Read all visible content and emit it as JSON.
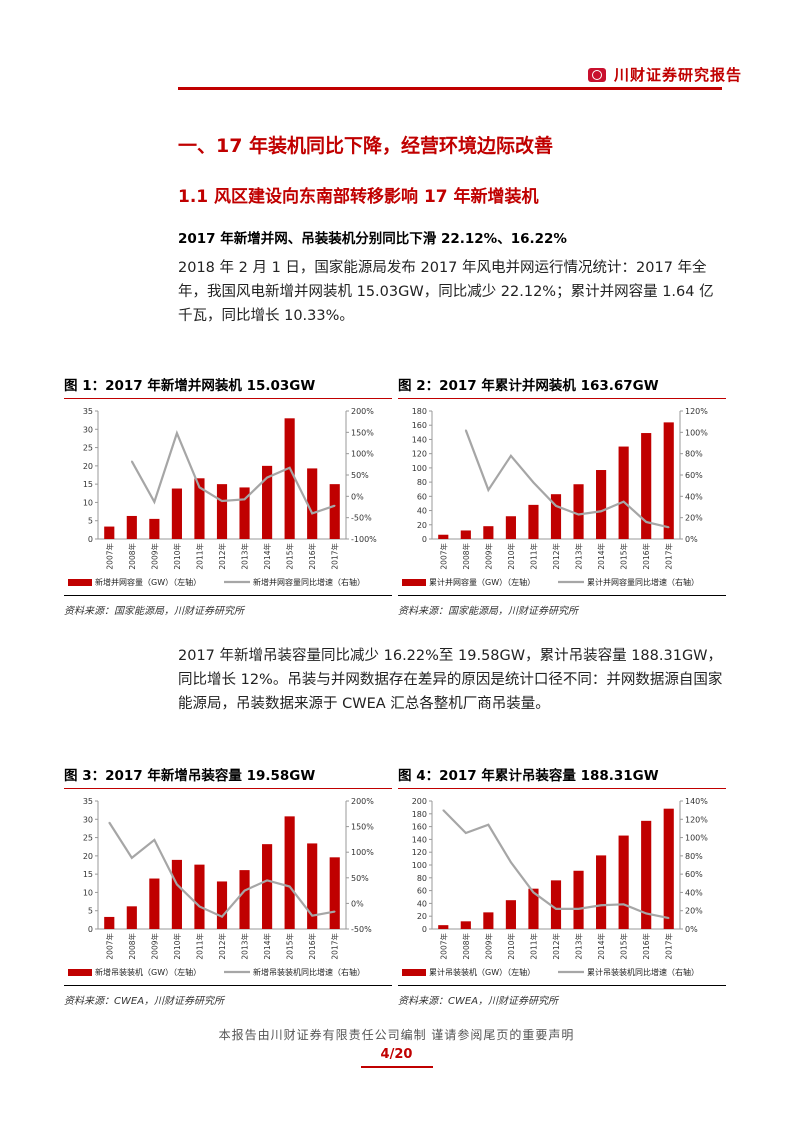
{
  "header": {
    "brand": "川财证券研究报告"
  },
  "section": {
    "h1": "一、17 年装机同比下降，经营环境边际改善",
    "h2": "1.1  风区建设向东南部转移影响 17 年新增装机",
    "h3": "2017 年新增并网、吊装装机分别同比下滑 22.12%、16.22%"
  },
  "paragraphs": [
    "2018 年 2 月 1 日，国家能源局发布 2017 年风电并网运行情况统计：2017 年全年，我国风电新增并网装机 15.03GW，同比减少 22.12%；累计并网容量 1.64 亿千瓦，同比增长 10.33%。",
    "2017 年新增吊装容量同比减少 16.22%至 19.58GW，累计吊装容量 188.31GW，同比增长 12%。吊装与并网数据存在差异的原因是统计口径不同：并网数据源自国家能源局，吊装数据来源于 CWEA 汇总各整机厂商吊装量。"
  ],
  "colors": {
    "bar": "#c00000",
    "line": "#a6a6a6",
    "accent": "#c00000"
  },
  "chart_data": [
    {
      "type": "bar",
      "title": "图 1：2017 年新增并网装机 15.03GW",
      "categories": [
        "2007年",
        "2008年",
        "2009年",
        "2010年",
        "2011年",
        "2012年",
        "2013年",
        "2014年",
        "2015年",
        "2016年",
        "2017年"
      ],
      "series": [
        {
          "name": "新增并网容量（GW）（左轴）",
          "type": "bar",
          "axis": "left",
          "values": [
            3.4,
            6.3,
            5.5,
            13.8,
            16.6,
            15.0,
            14.1,
            20.0,
            33.0,
            19.3,
            15.0
          ]
        },
        {
          "name": "新增并网容量同比增速（右轴）",
          "type": "line",
          "axis": "right",
          "values": [
            null,
            82,
            -13,
            148,
            21,
            -11,
            -7,
            44,
            67,
            -40,
            -22
          ]
        }
      ],
      "ylim": [
        0,
        35
      ],
      "yticks": [
        "0",
        "5",
        "10",
        "15",
        "20",
        "25",
        "30",
        "35"
      ],
      "y2lim": [
        -100,
        200
      ],
      "y2ticks": [
        "-100%",
        "-50%",
        "0%",
        "50%",
        "100%",
        "150%",
        "200%"
      ],
      "source": "资料来源：国家能源局，川财证券研究所"
    },
    {
      "type": "bar",
      "title": "图 2：2017 年累计并网装机 163.67GW",
      "categories": [
        "2007年",
        "2008年",
        "2009年",
        "2010年",
        "2011年",
        "2012年",
        "2013年",
        "2014年",
        "2015年",
        "2016年",
        "2017年"
      ],
      "series": [
        {
          "name": "累计并网容量（GW）（左轴）",
          "type": "bar",
          "axis": "left",
          "values": [
            6,
            12,
            18,
            32,
            48,
            63,
            77,
            97,
            130,
            149,
            164
          ]
        },
        {
          "name": "累计并网容量同比增速（右轴）",
          "type": "line",
          "axis": "right",
          "values": [
            null,
            102,
            46,
            78,
            53,
            31,
            23,
            26,
            35,
            16,
            11
          ]
        }
      ],
      "ylim": [
        0,
        180
      ],
      "yticks": [
        "0",
        "20",
        "40",
        "60",
        "80",
        "100",
        "120",
        "140",
        "160",
        "180"
      ],
      "y2lim": [
        0,
        120
      ],
      "y2ticks": [
        "0%",
        "20%",
        "40%",
        "60%",
        "80%",
        "100%",
        "120%"
      ],
      "source": "资料来源：国家能源局，川财证券研究所"
    },
    {
      "type": "bar",
      "title": "图 3：2017 年新增吊装容量 19.58GW",
      "categories": [
        "2007年",
        "2008年",
        "2009年",
        "2010年",
        "2011年",
        "2012年",
        "2013年",
        "2014年",
        "2015年",
        "2016年",
        "2017年"
      ],
      "series": [
        {
          "name": "新增吊装装机（GW）（左轴）",
          "type": "bar",
          "axis": "left",
          "values": [
            3.3,
            6.2,
            13.8,
            18.9,
            17.6,
            13.0,
            16.1,
            23.2,
            30.8,
            23.4,
            19.6
          ]
        },
        {
          "name": "新增吊装装机同比增速（右轴）",
          "type": "line",
          "axis": "right",
          "values": [
            158,
            89,
            124,
            37,
            -6,
            -26,
            25,
            45,
            33,
            -24,
            -16
          ]
        }
      ],
      "ylim": [
        0,
        35
      ],
      "yticks": [
        "0",
        "5",
        "10",
        "15",
        "20",
        "25",
        "30",
        "35"
      ],
      "y2lim": [
        -50,
        200
      ],
      "y2ticks": [
        "-50%",
        "0%",
        "50%",
        "100%",
        "150%",
        "200%"
      ],
      "source": "资料来源：CWEA，川财证券研究所"
    },
    {
      "type": "bar",
      "title": "图 4：2017 年累计吊装容量 188.31GW",
      "categories": [
        "2007年",
        "2008年",
        "2009年",
        "2010年",
        "2011年",
        "2012年",
        "2013年",
        "2014年",
        "2015年",
        "2016年",
        "2017年"
      ],
      "series": [
        {
          "name": "累计吊装装机（GW）（左轴）",
          "type": "bar",
          "axis": "left",
          "values": [
            6,
            12,
            26,
            45,
            63,
            76,
            91,
            115,
            146,
            169,
            188
          ]
        },
        {
          "name": "累计吊装装机同比增速（右轴）",
          "type": "line",
          "axis": "right",
          "values": [
            130,
            105,
            114,
            73,
            40,
            22,
            22,
            26,
            27,
            17,
            12
          ]
        }
      ],
      "ylim": [
        0,
        200
      ],
      "yticks": [
        "0",
        "20",
        "40",
        "60",
        "80",
        "100",
        "120",
        "140",
        "160",
        "180",
        "200"
      ],
      "y2lim": [
        0,
        140
      ],
      "y2ticks": [
        "0%",
        "20%",
        "40%",
        "60%",
        "80%",
        "100%",
        "120%",
        "140%"
      ],
      "source": "资料来源：CWEA，川财证券研究所"
    }
  ],
  "footer": {
    "disclaimer": "本报告由川财证券有限责任公司编制  谨请参阅尾页的重要声明",
    "page": "4/20"
  }
}
